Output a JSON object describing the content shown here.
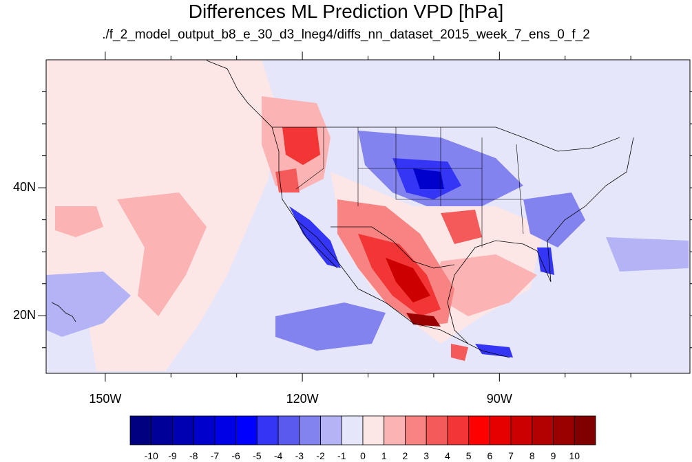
{
  "title": "Differences ML Prediction VPD [hPa]",
  "subtitle": "./f_2_model_output_b8_e_30_d3_lneg4/diffs_nn_dataset_2015_week_7_ens_0_f_2",
  "axes": {
    "lon_labels": [
      "150W",
      "120W",
      "90W"
    ],
    "lon_values": [
      -150,
      -120,
      -90
    ],
    "lat_labels": [
      "40N",
      "20N"
    ],
    "lat_values": [
      40,
      20
    ],
    "lon_range": [
      -159,
      -61
    ],
    "lat_range": [
      11,
      60
    ]
  },
  "colorbar": {
    "tick_labels": [
      "-10",
      "-9",
      "-8",
      "-7",
      "-6",
      "-5",
      "-4",
      "-3",
      "-2",
      "-1",
      "0",
      "1",
      "2",
      "3",
      "4",
      "5",
      "6",
      "7",
      "8",
      "9",
      "10"
    ],
    "colors": [
      "#000080",
      "#000099",
      "#0000b3",
      "#0000cc",
      "#0000e6",
      "#0000ff",
      "#3535f5",
      "#5a5aee",
      "#8383f0",
      "#b3b3f5",
      "#e6e6fa",
      "#fde6e6",
      "#fcb3b3",
      "#f88383",
      "#f55a5a",
      "#f23535",
      "#ff0000",
      "#e60000",
      "#cc0000",
      "#b30000",
      "#990000",
      "#800000"
    ]
  },
  "map_style": {
    "background_negative": "#e6e6fa",
    "background_positive": "#fde6e6",
    "coastline_color": "#000000"
  }
}
